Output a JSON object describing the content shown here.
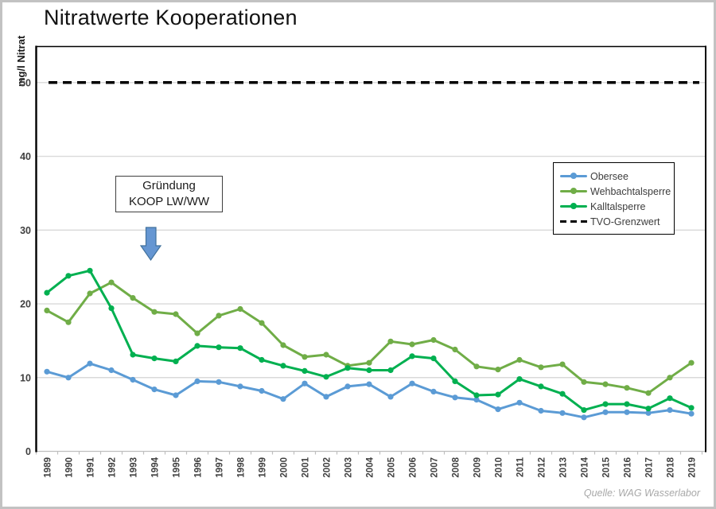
{
  "title": "Nitratwerte Kooperationen",
  "source": "Quelle: WAG Wasserlabor",
  "colors": {
    "obersee": "#5B9BD5",
    "wehbachtalsperre": "#70AD47",
    "kalltalsperre": "#00B050",
    "grenzwert": "#000000",
    "gridline": "#D9D9D9",
    "axis_text": "#404040",
    "arrow_fill": "#6596D2",
    "arrow_border": "#41719C"
  },
  "chart_data": {
    "type": "line",
    "title": "Nitratwerte Kooperationen",
    "xlabel": "",
    "ylabel": "mg/l Nitrat",
    "ylim": [
      0,
      55
    ],
    "yticks": [
      0,
      10,
      20,
      30,
      40,
      50
    ],
    "grid": true,
    "legend_position": "right-upper-middle",
    "x": [
      1989,
      1990,
      1991,
      1992,
      1993,
      1994,
      1995,
      1996,
      1997,
      1998,
      1999,
      2000,
      2001,
      2002,
      2003,
      2004,
      2005,
      2006,
      2007,
      2008,
      2009,
      2010,
      2011,
      2012,
      2013,
      2014,
      2015,
      2016,
      2017,
      2018,
      2019
    ],
    "series": [
      {
        "name": "Obersee",
        "color": "#5B9BD5",
        "values": [
          10.8,
          10.0,
          11.9,
          11.0,
          9.7,
          8.4,
          7.6,
          9.5,
          9.4,
          8.8,
          8.2,
          7.1,
          9.2,
          7.4,
          8.8,
          9.1,
          7.4,
          9.2,
          8.1,
          7.3,
          7.0,
          5.7,
          6.6,
          5.5,
          5.2,
          4.6,
          5.3,
          5.3,
          5.2,
          5.6,
          5.1
        ]
      },
      {
        "name": "Wehbachtalsperre",
        "color": "#70AD47",
        "values": [
          19.1,
          17.5,
          21.4,
          22.9,
          20.8,
          18.9,
          18.6,
          16.0,
          18.4,
          19.3,
          17.4,
          14.4,
          12.8,
          13.1,
          11.6,
          12.0,
          14.9,
          14.5,
          15.1,
          13.8,
          11.5,
          11.1,
          12.4,
          11.4,
          11.8,
          9.4,
          9.1,
          8.6,
          7.9,
          10.0,
          12.0
        ]
      },
      {
        "name": "Kalltalsperre",
        "color": "#00B050",
        "values": [
          21.5,
          23.8,
          24.5,
          19.4,
          13.1,
          12.6,
          12.2,
          14.3,
          14.1,
          14.0,
          12.4,
          11.6,
          10.9,
          10.1,
          11.3,
          11.0,
          11.0,
          12.9,
          12.6,
          9.5,
          7.6,
          7.7,
          9.8,
          8.8,
          7.8,
          5.6,
          6.4,
          6.4,
          5.8,
          7.2,
          5.9
        ]
      },
      {
        "name": "TVO-Grenzwert",
        "color": "#000000",
        "style": "dashed",
        "constant": 50
      }
    ],
    "annotation": {
      "line1": "Gründung",
      "line2": "KOOP LW/WW",
      "arrow_points_between": "1993/1994"
    }
  }
}
